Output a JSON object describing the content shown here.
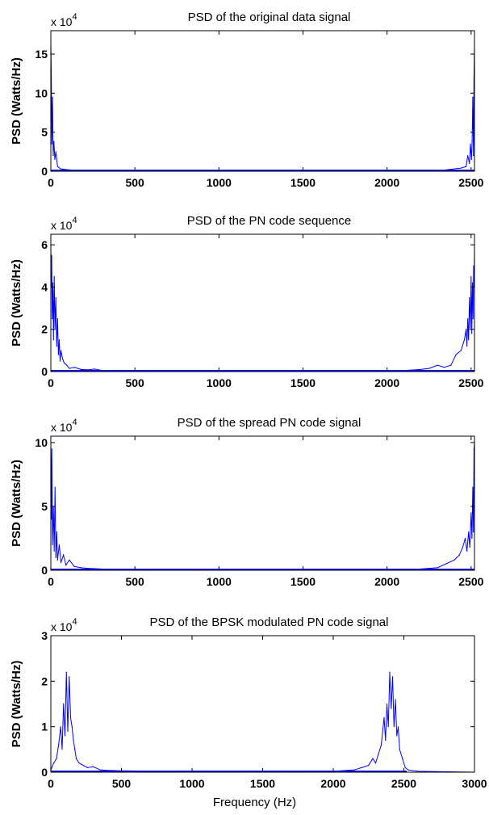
{
  "chart_data": [
    {
      "type": "line",
      "title": "PSD of the original data signal",
      "ylabel": "PSD (Watts/Hz)",
      "xlabel": "",
      "exponent_label": {
        "base": "x 10",
        "power": "4"
      },
      "xlim": [
        0,
        2520
      ],
      "ylim": [
        0,
        18
      ],
      "xticks": [
        0,
        500,
        1000,
        1500,
        2000,
        2500
      ],
      "yticks": [
        0,
        5,
        10,
        15
      ],
      "series_color": "#0000ff",
      "x": [
        0,
        3,
        6,
        10,
        14,
        18,
        24,
        30,
        40,
        60,
        100,
        200,
        500,
        1000,
        1500,
        2000,
        2300,
        2440,
        2470,
        2480,
        2490,
        2496,
        2502,
        2506,
        2510,
        2514,
        2517,
        2520
      ],
      "values": [
        16.5,
        12.0,
        3.5,
        9.5,
        2.0,
        3.8,
        1.5,
        2.5,
        0.6,
        0.3,
        0.2,
        0.05,
        0.02,
        0.02,
        0.02,
        0.02,
        0.05,
        0.4,
        0.6,
        2.0,
        1.0,
        3.5,
        1.5,
        3.8,
        9.5,
        2.0,
        12.0,
        16.5
      ]
    },
    {
      "type": "line",
      "title": "PSD of the PN code sequence",
      "ylabel": "PSD (Watts/Hz)",
      "xlabel": "",
      "exponent_label": {
        "base": "x 10",
        "power": "4"
      },
      "xlim": [
        0,
        2520
      ],
      "ylim": [
        0,
        6.5
      ],
      "xticks": [
        0,
        500,
        1000,
        1500,
        2000,
        2500
      ],
      "yticks": [
        0,
        2,
        4,
        6
      ],
      "series_color": "#0000ff",
      "x": [
        0,
        2,
        5,
        8,
        12,
        16,
        20,
        25,
        30,
        35,
        40,
        45,
        50,
        55,
        60,
        70,
        80,
        95,
        110,
        140,
        180,
        220,
        260,
        300,
        400,
        700,
        1000,
        1500,
        1800,
        2100,
        2200,
        2250,
        2300,
        2340,
        2380,
        2410,
        2440,
        2460,
        2470,
        2475,
        2480,
        2485,
        2490,
        2495,
        2500,
        2504,
        2508,
        2512,
        2515,
        2518,
        2520
      ],
      "values": [
        6.0,
        4.0,
        5.5,
        2.5,
        4.2,
        1.5,
        4.5,
        2.0,
        3.5,
        1.2,
        2.5,
        0.8,
        1.5,
        0.5,
        1.0,
        0.6,
        0.4,
        0.3,
        0.15,
        0.2,
        0.1,
        0.08,
        0.12,
        0.06,
        0.05,
        0.03,
        0.03,
        0.03,
        0.03,
        0.05,
        0.1,
        0.15,
        0.3,
        0.2,
        0.3,
        0.8,
        1.0,
        1.5,
        2.0,
        1.2,
        2.5,
        1.5,
        3.5,
        2.0,
        4.5,
        1.8,
        4.2,
        2.5,
        5.0,
        4.0,
        6.0
      ]
    },
    {
      "type": "line",
      "title": "PSD of the spread PN code signal",
      "ylabel": "PSD (Watts/Hz)",
      "xlabel": "",
      "exponent_label": {
        "base": "x 10",
        "power": "4"
      },
      "xlim": [
        0,
        2520
      ],
      "ylim": [
        0,
        10.5
      ],
      "xticks": [
        0,
        500,
        1000,
        1500,
        2000,
        2500
      ],
      "yticks": [
        0,
        5,
        10
      ],
      "series_color": "#0000ff",
      "x": [
        0,
        3,
        6,
        10,
        15,
        20,
        25,
        30,
        35,
        40,
        50,
        60,
        75,
        90,
        110,
        140,
        180,
        220,
        300,
        500,
        1000,
        1500,
        2000,
        2200,
        2300,
        2350,
        2400,
        2430,
        2450,
        2465,
        2475,
        2485,
        2492,
        2500,
        2505,
        2510,
        2514,
        2517,
        2520
      ],
      "values": [
        10.0,
        4.0,
        9.5,
        2.0,
        5.0,
        1.5,
        6.5,
        1.0,
        3.0,
        0.8,
        2.0,
        0.6,
        1.2,
        0.4,
        0.8,
        0.3,
        0.2,
        0.15,
        0.1,
        0.05,
        0.03,
        0.03,
        0.05,
        0.1,
        0.2,
        0.5,
        0.8,
        1.2,
        1.8,
        2.5,
        1.5,
        3.0,
        1.8,
        4.5,
        2.5,
        6.5,
        3.0,
        9.5,
        10.0
      ]
    },
    {
      "type": "line",
      "title": "PSD of the BPSK modulated PN code signal",
      "ylabel": "PSD (Watts/Hz)",
      "xlabel": "Frequency (Hz)",
      "exponent_label": {
        "base": "x 10",
        "power": "4"
      },
      "xlim": [
        0,
        3000
      ],
      "ylim": [
        0,
        3
      ],
      "xticks": [
        0,
        500,
        1000,
        1500,
        2000,
        2500,
        3000
      ],
      "yticks": [
        0,
        1,
        2,
        3
      ],
      "series_color": "#0000ff",
      "x": [
        0,
        20,
        40,
        55,
        70,
        80,
        90,
        100,
        110,
        120,
        130,
        140,
        150,
        160,
        170,
        180,
        200,
        230,
        260,
        300,
        350,
        400,
        500,
        800,
        1200,
        1600,
        2000,
        2150,
        2200,
        2250,
        2280,
        2300,
        2320,
        2340,
        2360,
        2370,
        2380,
        2390,
        2400,
        2410,
        2420,
        2430,
        2440,
        2450,
        2460,
        2470,
        2490,
        2510,
        2530,
        2600,
        3000
      ],
      "values": [
        0.05,
        0.2,
        0.3,
        0.6,
        1.0,
        0.5,
        1.5,
        0.8,
        2.2,
        0.9,
        2.1,
        1.2,
        1.0,
        0.7,
        0.5,
        0.3,
        0.2,
        0.15,
        0.1,
        0.12,
        0.05,
        0.04,
        0.03,
        0.02,
        0.02,
        0.02,
        0.02,
        0.05,
        0.1,
        0.15,
        0.3,
        0.2,
        0.4,
        0.6,
        1.2,
        0.7,
        1.5,
        1.0,
        2.2,
        1.4,
        2.1,
        1.0,
        1.6,
        0.8,
        1.0,
        0.5,
        0.3,
        0.1,
        0.05,
        0.02,
        0.0
      ]
    }
  ]
}
